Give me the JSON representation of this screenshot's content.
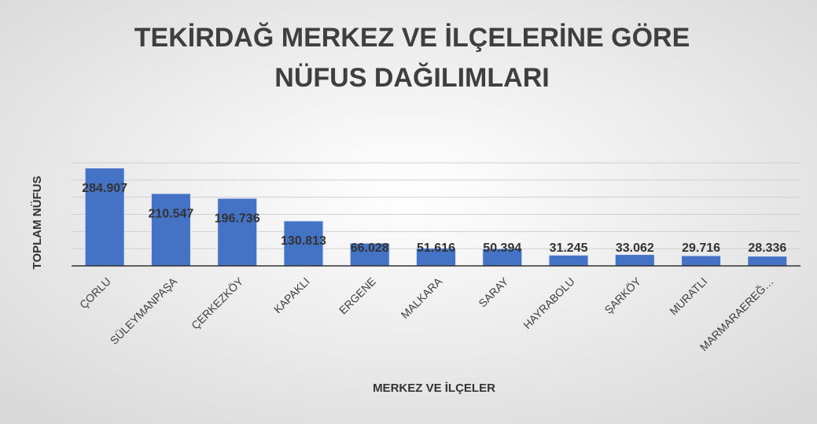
{
  "chart_data": {
    "type": "bar",
    "title": [
      "TEKİRDAĞ MERKEZ VE İLÇELERİNE GÖRE",
      "NÜFUS DAĞILIMLARI"
    ],
    "x_label": "MERKEZ VE İLÇELER",
    "y_label": "TOPLAM NÜFUS",
    "categories": [
      "ÇORLU",
      "SÜLEYMANPAŞA",
      "ÇERKEZKÖY",
      "KAPAKLI",
      "ERGENE",
      "MALKARA",
      "SARAY",
      "HAYRABOLU",
      "ŞARKÖY",
      "MURATLI",
      "MARMARAEREĞ…"
    ],
    "values": [
      284907,
      210547,
      196736,
      130813,
      66028,
      51616,
      50394,
      31245,
      33062,
      29716,
      28336
    ],
    "value_labels": [
      "284.907",
      "210.547",
      "196.736",
      "130.813",
      "66.028",
      "51.616",
      "50.394",
      "31.245",
      "33.062",
      "29.716",
      "28.336"
    ],
    "color": "#4472c4",
    "ylim": [
      0,
      300000
    ],
    "yticks": [
      0,
      50000,
      100000,
      150000,
      200000,
      250000,
      300000
    ],
    "grid": true
  }
}
